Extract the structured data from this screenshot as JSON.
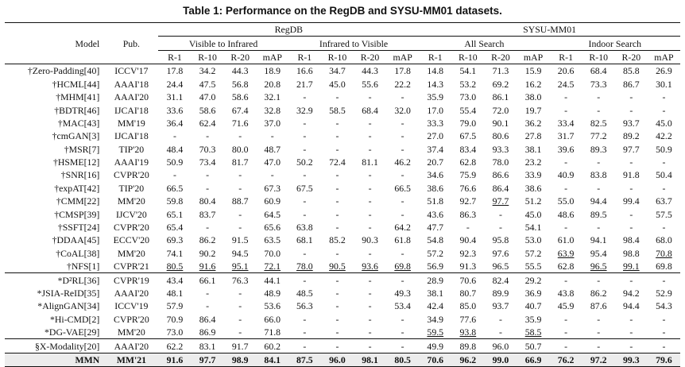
{
  "caption": "Table 1: Performance on the RegDB and SYSU-MM01 datasets.",
  "headers": {
    "model": "Model",
    "pub": "Pub.",
    "regdb": "RegDB",
    "sysu": "SYSU-MM01",
    "v2i": "Visible to Infrared",
    "i2v": "Infrared to Visible",
    "all_search": "All Search",
    "indoor_search": "Indoor Search",
    "r1": "R-1",
    "r10": "R-10",
    "r20": "R-20",
    "map": "mAP"
  },
  "rows": [
    {
      "model": "†Zero-Padding[40]",
      "pub": "ICCV'17",
      "vals": [
        "17.8",
        "34.2",
        "44.3",
        "18.9",
        "16.6",
        "34.7",
        "44.3",
        "17.8",
        "14.8",
        "54.1",
        "71.3",
        "15.9",
        "20.6",
        "68.4",
        "85.8",
        "26.9"
      ]
    },
    {
      "model": "†HCML[44]",
      "pub": "AAAI'18",
      "vals": [
        "24.4",
        "47.5",
        "56.8",
        "20.8",
        "21.7",
        "45.0",
        "55.6",
        "22.2",
        "14.3",
        "53.2",
        "69.2",
        "16.2",
        "24.5",
        "73.3",
        "86.7",
        "30.1"
      ]
    },
    {
      "model": "†MHM[41]",
      "pub": "AAAI'20",
      "vals": [
        "31.1",
        "47.0",
        "58.6",
        "32.1",
        "-",
        "-",
        "-",
        "-",
        "35.9",
        "73.0",
        "86.1",
        "38.0",
        "-",
        "-",
        "-",
        "-"
      ]
    },
    {
      "model": "†BDTR[46]",
      "pub": "IJCAI'18",
      "vals": [
        "33.6",
        "58.6",
        "67.4",
        "32.8",
        "32.9",
        "58.5",
        "68.4",
        "32.0",
        "17.0",
        "55.4",
        "72.0",
        "19.7",
        "-",
        "-",
        "-",
        "-"
      ]
    },
    {
      "model": "†MAC[43]",
      "pub": "MM'19",
      "vals": [
        "36.4",
        "62.4",
        "71.6",
        "37.0",
        "-",
        "-",
        "-",
        "-",
        "33.3",
        "79.0",
        "90.1",
        "36.2",
        "33.4",
        "82.5",
        "93.7",
        "45.0"
      ]
    },
    {
      "model": "†cmGAN[3]",
      "pub": "IJCAI'18",
      "vals": [
        "-",
        "-",
        "-",
        "-",
        "-",
        "-",
        "-",
        "-",
        "27.0",
        "67.5",
        "80.6",
        "27.8",
        "31.7",
        "77.2",
        "89.2",
        "42.2"
      ]
    },
    {
      "model": "†MSR[7]",
      "pub": "TIP'20",
      "vals": [
        "48.4",
        "70.3",
        "80.0",
        "48.7",
        "-",
        "-",
        "-",
        "-",
        "37.4",
        "83.4",
        "93.3",
        "38.1",
        "39.6",
        "89.3",
        "97.7",
        "50.9"
      ]
    },
    {
      "model": "†HSME[12]",
      "pub": "AAAI'19",
      "vals": [
        "50.9",
        "73.4",
        "81.7",
        "47.0",
        "50.2",
        "72.4",
        "81.1",
        "46.2",
        "20.7",
        "62.8",
        "78.0",
        "23.2",
        "-",
        "-",
        "-",
        "-"
      ]
    },
    {
      "model": "†SNR[16]",
      "pub": "CVPR'20",
      "vals": [
        "-",
        "-",
        "-",
        "-",
        "-",
        "-",
        "-",
        "-",
        "34.6",
        "75.9",
        "86.6",
        "33.9",
        "40.9",
        "83.8",
        "91.8",
        "50.4"
      ]
    },
    {
      "model": "†expAT[42]",
      "pub": "TIP'20",
      "vals": [
        "66.5",
        "-",
        "-",
        "67.3",
        "67.5",
        "-",
        "-",
        "66.5",
        "38.6",
        "76.6",
        "86.4",
        "38.6",
        "-",
        "-",
        "-",
        "-"
      ]
    },
    {
      "model": "†CMM[22]",
      "pub": "MM'20",
      "vals": [
        "59.8",
        "80.4",
        "88.7",
        "60.9",
        "-",
        "-",
        "-",
        "-",
        "51.8",
        "92.7",
        "97.7",
        "51.2",
        "55.0",
        "94.4",
        "99.4",
        "63.7"
      ]
    },
    {
      "model": "†CMSP[39]",
      "pub": "IJCV'20",
      "vals": [
        "65.1",
        "83.7",
        "-",
        "64.5",
        "-",
        "-",
        "-",
        "-",
        "43.6",
        "86.3",
        "-",
        "45.0",
        "48.6",
        "89.5",
        "-",
        "57.5"
      ]
    },
    {
      "model": "†SSFT[24]",
      "pub": "CVPR'20",
      "vals": [
        "65.4",
        "-",
        "-",
        "65.6",
        "63.8",
        "-",
        "-",
        "64.2",
        "47.7",
        "-",
        "-",
        "54.1",
        "-",
        "-",
        "-",
        "-"
      ]
    },
    {
      "model": "†DDAA[45]",
      "pub": "ECCV'20",
      "vals": [
        "69.3",
        "86.2",
        "91.5",
        "63.5",
        "68.1",
        "85.2",
        "90.3",
        "61.8",
        "54.8",
        "90.4",
        "95.8",
        "53.0",
        "61.0",
        "94.1",
        "98.4",
        "68.0"
      ]
    },
    {
      "model": "†CoAL[38]",
      "pub": "MM'20",
      "vals": [
        "74.1",
        "90.2",
        "94.5",
        "70.0",
        "-",
        "-",
        "-",
        "-",
        "57.2",
        "92.3",
        "97.6",
        "57.2",
        "63.9",
        "95.4",
        "98.8",
        "70.8"
      ]
    },
    {
      "model": "†NFS[1]",
      "pub": "CVPR'21",
      "vals": [
        "80.5",
        "91.6",
        "95.1",
        "72.1",
        "78.0",
        "90.5",
        "93.6",
        "69.8",
        "56.9",
        "91.3",
        "96.5",
        "55.5",
        "62.8",
        "96.5",
        "99.1",
        "69.8"
      ]
    },
    {
      "model": "*D²RL[36]",
      "pub": "CVPR'19",
      "vals": [
        "43.4",
        "66.1",
        "76.3",
        "44.1",
        "-",
        "-",
        "-",
        "-",
        "28.9",
        "70.6",
        "82.4",
        "29.2",
        "-",
        "-",
        "-",
        "-"
      ]
    },
    {
      "model": "*JSIA-ReID[35]",
      "pub": "AAAI'20",
      "vals": [
        "48.1",
        "-",
        "-",
        "48.9",
        "48.5",
        "-",
        "-",
        "49.3",
        "38.1",
        "80.7",
        "89.9",
        "36.9",
        "43.8",
        "86.2",
        "94.2",
        "52.9"
      ]
    },
    {
      "model": "*AlignGAN[34]",
      "pub": "ICCV'19",
      "vals": [
        "57.9",
        "-",
        "-",
        "53.6",
        "56.3",
        "-",
        "-",
        "53.4",
        "42.4",
        "85.0",
        "93.7",
        "40.7",
        "45.9",
        "87.6",
        "94.4",
        "54.3"
      ]
    },
    {
      "model": "*Hi-CMD[2]",
      "pub": "CVPR'20",
      "vals": [
        "70.9",
        "86.4",
        "-",
        "66.0",
        "-",
        "-",
        "-",
        "-",
        "34.9",
        "77.6",
        "-",
        "35.9",
        "-",
        "-",
        "-",
        "-"
      ]
    },
    {
      "model": "*DG-VAE[29]",
      "pub": "MM'20",
      "vals": [
        "73.0",
        "86.9",
        "-",
        "71.8",
        "-",
        "-",
        "-",
        "-",
        "59.5",
        "93.8",
        "-",
        "58.5",
        "-",
        "-",
        "-",
        "-"
      ]
    },
    {
      "model": "§X-Modality[20]",
      "pub": "AAAI'20",
      "vals": [
        "62.2",
        "83.1",
        "91.7",
        "60.2",
        "-",
        "-",
        "-",
        "-",
        "49.9",
        "89.8",
        "96.0",
        "50.7",
        "-",
        "-",
        "-",
        "-"
      ]
    }
  ],
  "best": {
    "model": "MMN",
    "pub": "MM'21",
    "vals": [
      "91.6",
      "97.7",
      "98.9",
      "84.1",
      "87.5",
      "96.0",
      "98.1",
      "80.5",
      "70.6",
      "96.2",
      "99.0",
      "66.9",
      "76.2",
      "97.2",
      "99.3",
      "79.6"
    ]
  }
}
